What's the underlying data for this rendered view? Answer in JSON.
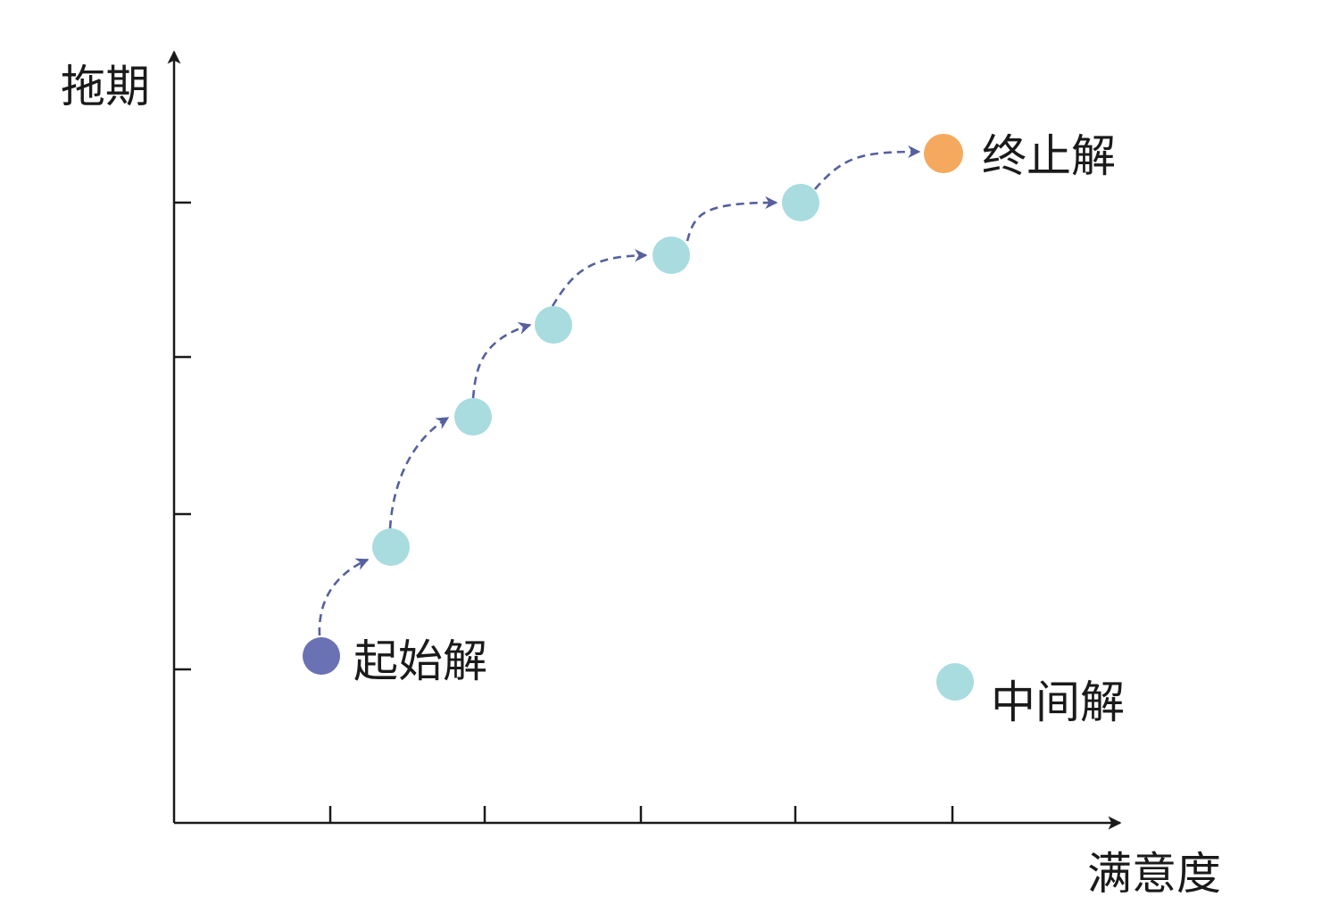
{
  "axes": {
    "y_label": "拖期",
    "x_label": "满意度"
  },
  "labels": {
    "start": "起始解",
    "end": "终止解",
    "legend_intermediate": "中间解"
  },
  "colors": {
    "axis": "#1a1a1a",
    "start_node": "#6a72b4",
    "intermediate_node": "#a8dcdf",
    "end_node": "#f5a95f",
    "arrow": "#56609e"
  }
}
